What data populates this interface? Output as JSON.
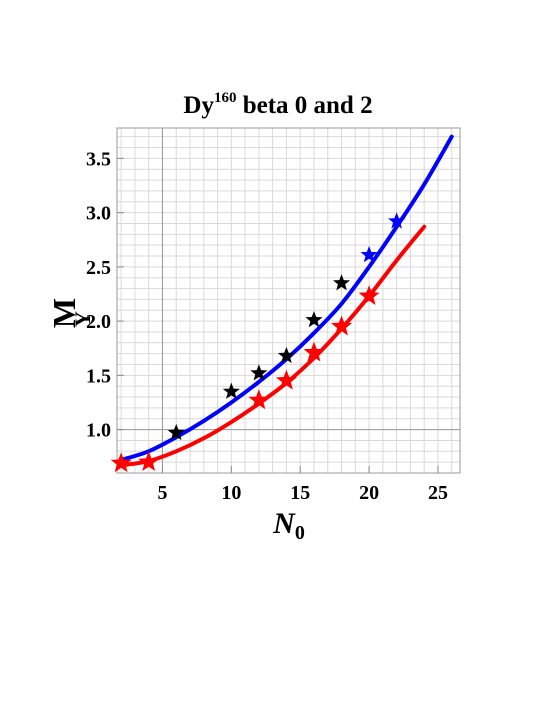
{
  "chart_data": {
    "type": "line",
    "title": {
      "base": "Dy",
      "superscript": "160",
      "rest": " beta 0 and 2"
    },
    "xlabel": {
      "base": "N",
      "subscript": "0"
    },
    "ylabel": {
      "first": "M",
      "second": "Y"
    },
    "xlim": [
      1.7,
      26.6
    ],
    "ylim": [
      0.6,
      3.78
    ],
    "xticks": [
      5,
      10,
      15,
      20,
      25
    ],
    "yticks": [
      1.0,
      1.5,
      2.0,
      2.5,
      3.0,
      3.5
    ],
    "ytick_labels": [
      "1.0",
      "1.5",
      "2.0",
      "2.5",
      "3.0",
      "3.5"
    ],
    "grid": true,
    "series": [
      {
        "kind": "line",
        "color": "#0000ff",
        "x": [
          2,
          4,
          6,
          8,
          10,
          12,
          14,
          16,
          18,
          20,
          22,
          24,
          26
        ],
        "y": [
          0.72,
          0.8,
          0.93,
          1.08,
          1.25,
          1.44,
          1.65,
          1.89,
          2.16,
          2.5,
          2.87,
          3.26,
          3.7
        ]
      },
      {
        "kind": "line",
        "color": "#ff0000",
        "x": [
          2,
          4,
          6,
          8,
          10,
          12,
          14,
          16,
          18,
          20,
          22,
          24
        ],
        "y": [
          0.67,
          0.71,
          0.8,
          0.92,
          1.07,
          1.24,
          1.43,
          1.66,
          1.93,
          2.23,
          2.56,
          2.87
        ]
      },
      {
        "kind": "star",
        "color": "#000000",
        "size": 9,
        "x": [
          6,
          10,
          12,
          14,
          16,
          18
        ],
        "y": [
          0.97,
          1.35,
          1.52,
          1.68,
          2.01,
          2.35
        ]
      },
      {
        "kind": "star",
        "color": "#0000ff",
        "size": 9,
        "x": [
          20,
          22
        ],
        "y": [
          2.61,
          2.92
        ]
      },
      {
        "kind": "star",
        "color": "#ff0000",
        "size": 11,
        "x": [
          2,
          4,
          12,
          14,
          16,
          18,
          20
        ],
        "y": [
          0.69,
          0.7,
          1.27,
          1.45,
          1.71,
          1.95,
          2.23
        ]
      }
    ]
  }
}
